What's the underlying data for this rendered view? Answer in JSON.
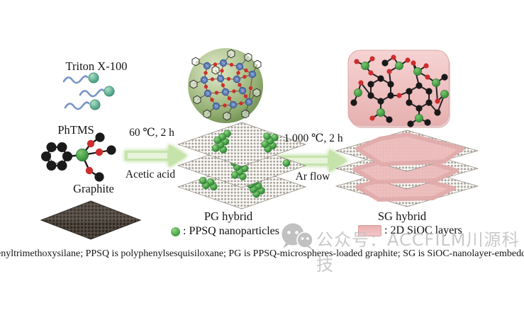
{
  "labels": {
    "triton": "Triton X-100",
    "phtms": "PhTMS",
    "graphite": "Graphite",
    "pg_hybrid": "PG hybrid",
    "sg_hybrid": "SG hybrid"
  },
  "step1": {
    "top": "60 ℃, 2 h",
    "bottom": "Acetic acid"
  },
  "step2": {
    "top": "1 000 ℃, 2 h",
    "bottom": "Ar flow"
  },
  "legends": {
    "ppsq": ": PPSQ nanoparticles",
    "sioc": ": 2D SiOC layers"
  },
  "watermark": {
    "icon": "wechat-icon",
    "text": "公众号：ACCFILM川源科技"
  },
  "caption": "enyltrimethoxysilane; PPSQ is polyphenylsesquisiloxane; PG is PPSQ-microspheres-loaded graphite; SG is SiOC-nanolayer-embedded graphi",
  "colors": {
    "arrow_green": "#c6e3ac",
    "ppsq_green": "#4aa04a",
    "sioc_pink": "#edbcbc",
    "graphite_dark": "#4e453d",
    "si_network_blue": "#5b79b5",
    "oxygen_red": "#cc2f2f",
    "silicon_green": "#3f9e42",
    "carbon_black": "#1a1a1a",
    "surfactant_teal": "#4fa98a",
    "surfactant_tail_blue": "#7b96c9",
    "watermark_gray": "#c0c0c0"
  }
}
